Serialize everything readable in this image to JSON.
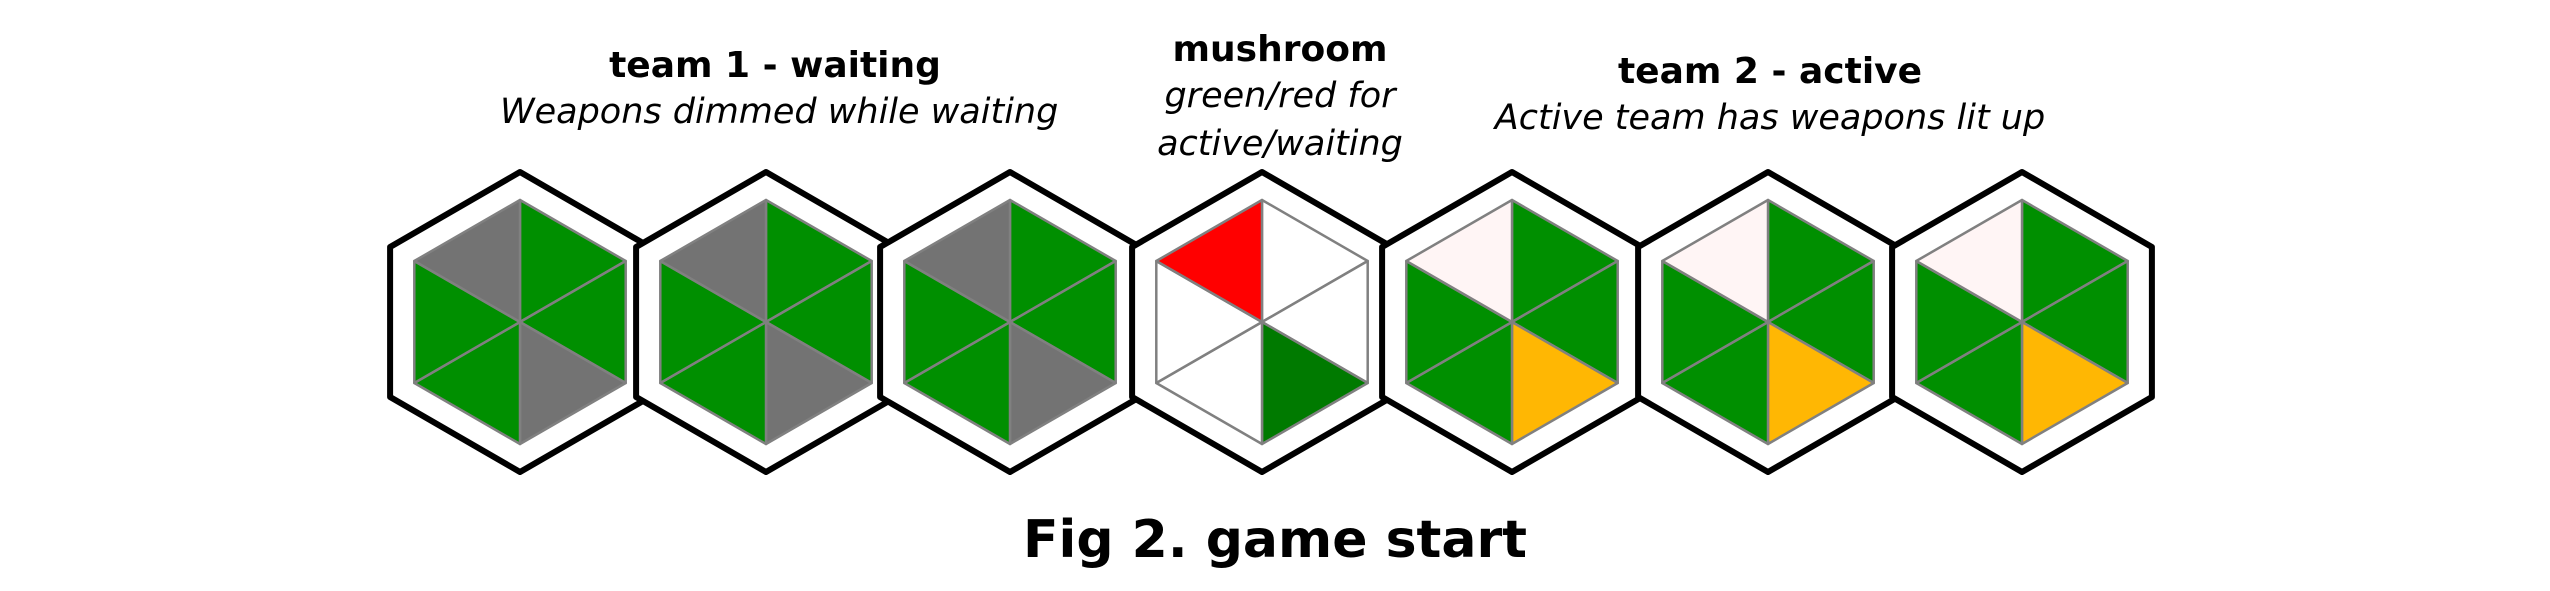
{
  "labels": {
    "team1": {
      "title": "team 1 - waiting",
      "sub": "Weapons dimmed while waiting"
    },
    "mushroom": {
      "title": "mushroom",
      "sub_line1": "green/red for",
      "sub_line2": "active/waiting"
    },
    "team2": {
      "title": "team 2 - active",
      "sub": "Active team has weapons lit up"
    }
  },
  "caption": "Fig 2. game start",
  "colors": {
    "green": "#008f00",
    "gray": "#737373",
    "red": "#ff0000",
    "dark_green": "#007a00",
    "white": "#ffffff",
    "pink_white": "#fff5f5",
    "amber": "#ffb703",
    "outline": "#000000",
    "divider": "#808080"
  },
  "hexes": [
    {
      "name": "team1-hex-1",
      "segments": [
        "green",
        "green",
        "gray",
        "green",
        "green",
        "gray"
      ]
    },
    {
      "name": "team1-hex-2",
      "segments": [
        "green",
        "green",
        "gray",
        "green",
        "green",
        "gray"
      ]
    },
    {
      "name": "team1-hex-3",
      "segments": [
        "green",
        "green",
        "gray",
        "green",
        "green",
        "gray"
      ]
    },
    {
      "name": "mushroom-hex",
      "segments": [
        "white",
        "white",
        "dark_green",
        "white",
        "white",
        "red"
      ]
    },
    {
      "name": "team2-hex-1",
      "segments": [
        "green",
        "green",
        "amber",
        "green",
        "green",
        "pink_white"
      ]
    },
    {
      "name": "team2-hex-2",
      "segments": [
        "green",
        "green",
        "amber",
        "green",
        "green",
        "pink_white"
      ]
    },
    {
      "name": "team2-hex-3",
      "segments": [
        "green",
        "green",
        "amber",
        "green",
        "green",
        "pink_white"
      ]
    }
  ]
}
